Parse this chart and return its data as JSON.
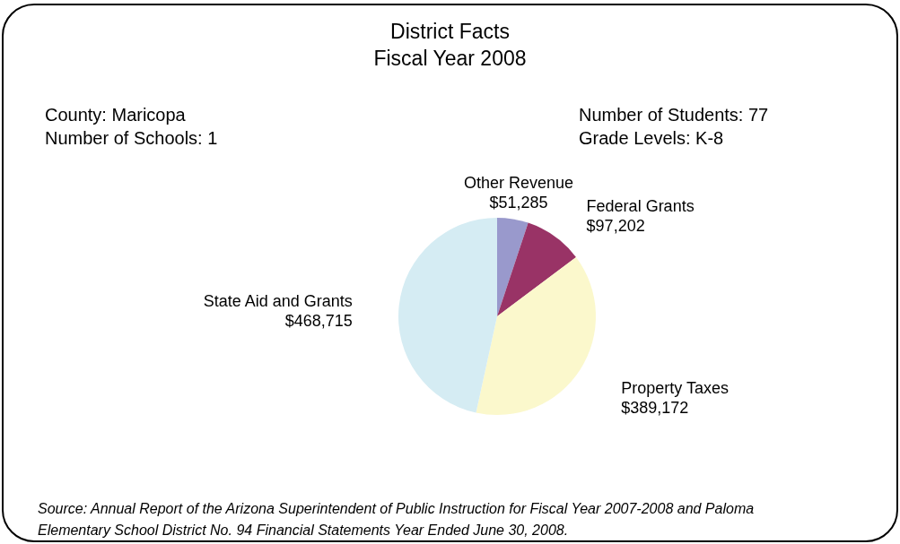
{
  "chart_data": {
    "type": "pie",
    "title": "District Facts",
    "subtitle": "Fiscal Year 2008",
    "categories": [
      "Other Revenue",
      "Federal Grants",
      "Property Taxes",
      "State Aid and Grants"
    ],
    "values": [
      51285,
      97202,
      389172,
      468715
    ],
    "colors": [
      "#9999cc",
      "#993366",
      "#fbf8cc",
      "#d5ecf3"
    ],
    "value_labels": [
      "$51,285",
      "$97,202",
      "$389,172",
      "$468,715"
    ],
    "annotations": [
      "County: Maricopa",
      "Number of Schools: 1",
      "Number of Students: 77",
      "Grade Levels: K-8",
      "Source:    Annual Report of the Arizona Superintendent of Public Instruction for Fiscal Year 2007-2008 and Paloma Elementary School District No. 94 Financial Statements Year Ended June 30, 2008."
    ]
  }
}
